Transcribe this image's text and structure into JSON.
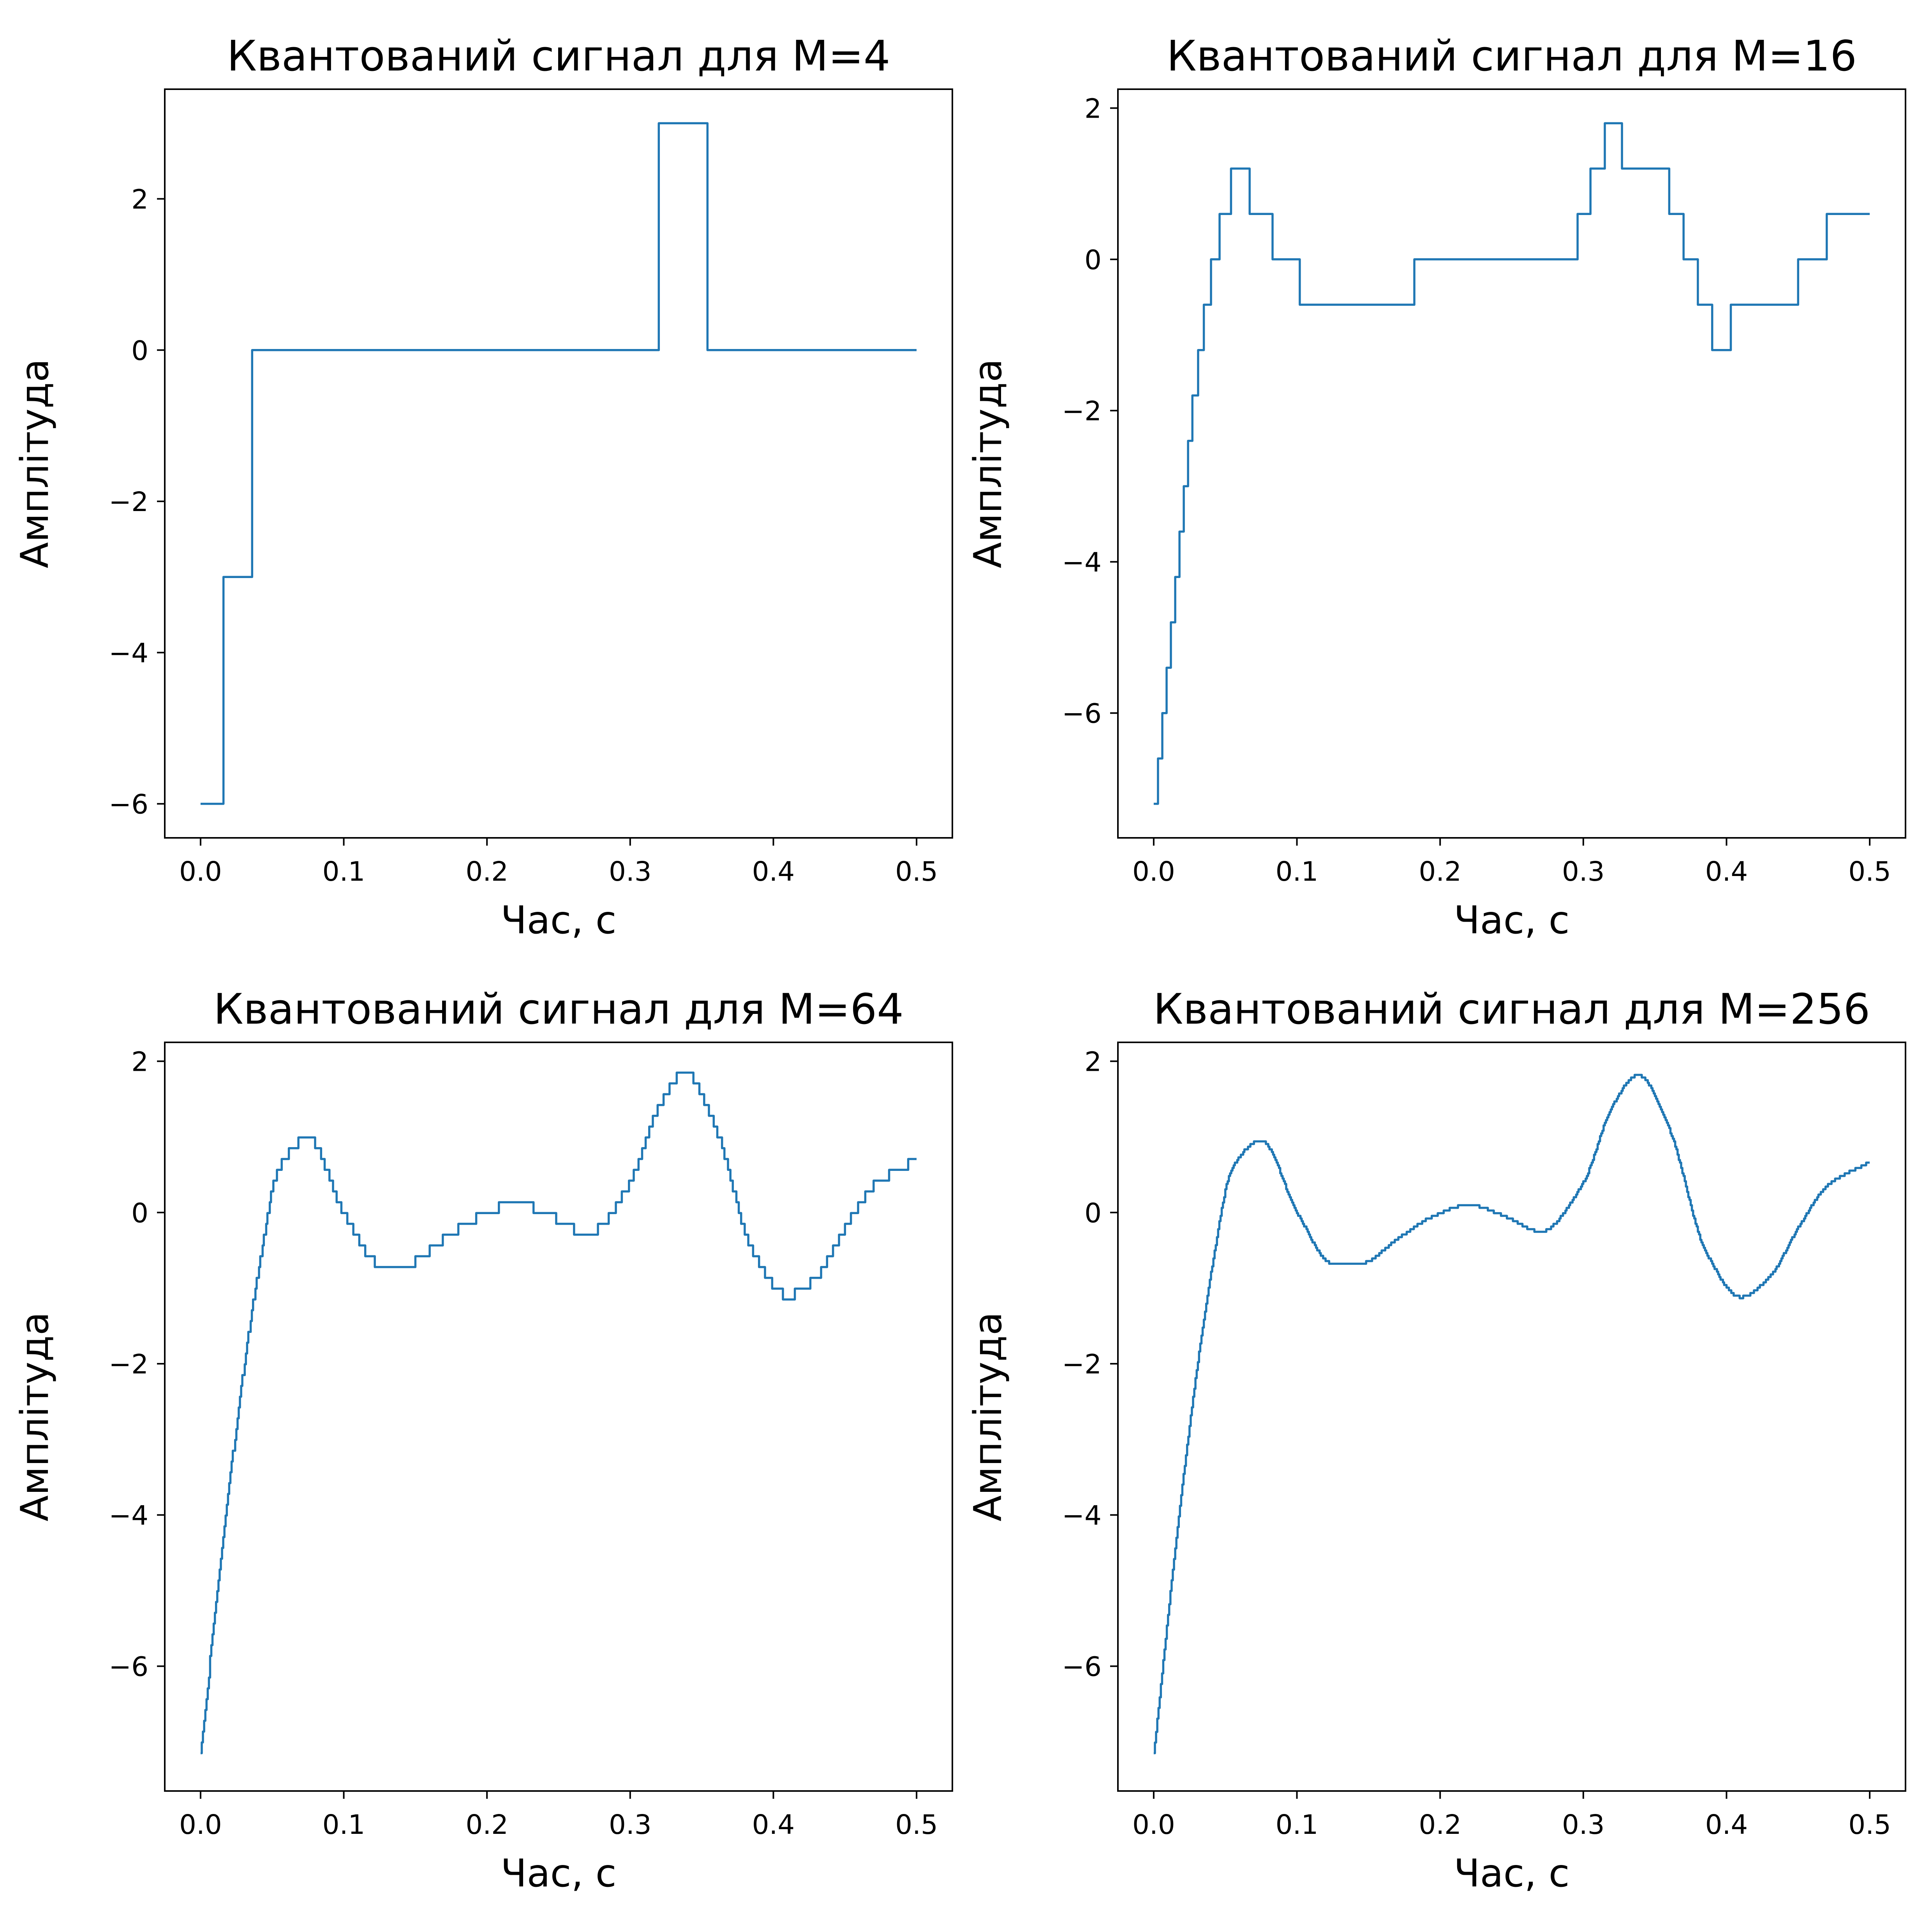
{
  "chart_data": [
    {
      "type": "line",
      "title": "Квантований сигнал для M=4",
      "xlabel": "Час, с",
      "ylabel": "Амплітуда",
      "xlim": [
        -0.025,
        0.525
      ],
      "ylim": [
        -6.45,
        3.45
      ],
      "xticks": [
        0.0,
        0.1,
        0.2,
        0.3,
        0.4,
        0.5
      ],
      "xtick_labels": [
        "0.0",
        "0.1",
        "0.2",
        "0.3",
        "0.4",
        "0.5"
      ],
      "yticks": [
        -6,
        -4,
        -2,
        0,
        2
      ],
      "ytick_labels": [
        "−6",
        "−4",
        "−2",
        "0",
        "2"
      ],
      "grid": false,
      "color": "#1f77b4",
      "series": [
        {
          "step": true,
          "x": [
            0,
            0.016,
            0.036,
            0.32,
            0.354,
            0.5
          ],
          "y": [
            -6,
            -3,
            0,
            3,
            0,
            0
          ]
        }
      ]
    },
    {
      "type": "line",
      "title": "Квантований сигнал для M=16",
      "xlabel": "Час, с",
      "ylabel": "Амплітуда",
      "xlim": [
        -0.025,
        0.525
      ],
      "ylim": [
        -7.65,
        2.25
      ],
      "xticks": [
        0.0,
        0.1,
        0.2,
        0.3,
        0.4,
        0.5
      ],
      "xtick_labels": [
        "0.0",
        "0.1",
        "0.2",
        "0.3",
        "0.4",
        "0.5"
      ],
      "yticks": [
        -6,
        -4,
        -2,
        0,
        2
      ],
      "ytick_labels": [
        "−6",
        "−4",
        "−2",
        "0",
        "2"
      ],
      "grid": false,
      "color": "#1f77b4",
      "series": [
        {
          "step": true,
          "x": [
            0,
            0.003,
            0.006,
            0.009,
            0.012,
            0.015,
            0.018,
            0.021,
            0.024,
            0.027,
            0.031,
            0.035,
            0.04,
            0.046,
            0.054,
            0.067,
            0.083,
            0.102,
            0.118,
            0.182,
            0.296,
            0.305,
            0.315,
            0.327,
            0.36,
            0.37,
            0.38,
            0.39,
            0.403,
            0.429,
            0.45,
            0.47,
            0.5
          ],
          "y": [
            -7.2,
            -6.6,
            -6.0,
            -5.4,
            -4.8,
            -4.2,
            -3.6,
            -3.0,
            -2.4,
            -1.8,
            -1.2,
            -0.6,
            0.0,
            0.6,
            1.2,
            0.6,
            0.0,
            -0.6,
            -0.6,
            0.0,
            0.6,
            1.2,
            1.8,
            1.2,
            0.6,
            0.0,
            -0.6,
            -1.2,
            -0.6,
            -0.6,
            0.0,
            0.6,
            0.6
          ]
        }
      ]
    },
    {
      "type": "line",
      "title": "Квантований сигнал для M=64",
      "xlabel": "Час, с",
      "ylabel": "Амплітуда",
      "xlim": [
        -0.025,
        0.525
      ],
      "ylim": [
        -7.65,
        2.25
      ],
      "xticks": [
        0.0,
        0.1,
        0.2,
        0.3,
        0.4,
        0.5
      ],
      "xtick_labels": [
        "0.0",
        "0.1",
        "0.2",
        "0.3",
        "0.4",
        "0.5"
      ],
      "yticks": [
        -6,
        -4,
        -2,
        0,
        2
      ],
      "ytick_labels": [
        "−6",
        "−4",
        "−2",
        "0",
        "2"
      ],
      "grid": false,
      "color": "#1f77b4",
      "quantization_levels": 64,
      "series": [
        {
          "step": true,
          "x": [
            0,
            0.02,
            0.04,
            0.055,
            0.075,
            0.1,
            0.125,
            0.145,
            0.17,
            0.195,
            0.22,
            0.245,
            0.27,
            0.3,
            0.32,
            0.338,
            0.36,
            0.385,
            0.41,
            0.43,
            0.45,
            0.47,
            0.5
          ],
          "y": [
            -7.15,
            -3.6,
            -0.8,
            0.6,
            0.98,
            0.0,
            -0.68,
            -0.67,
            -0.35,
            -0.05,
            0.12,
            -0.05,
            -0.28,
            0.4,
            1.4,
            1.85,
            1.1,
            -0.5,
            -1.1,
            -0.85,
            -0.2,
            0.35,
            0.7
          ]
        }
      ]
    },
    {
      "type": "line",
      "title": "Квантований сигнал для M=256",
      "xlabel": "Час, с",
      "ylabel": "Амплітуда",
      "xlim": [
        -0.025,
        0.525
      ],
      "ylim": [
        -7.65,
        2.25
      ],
      "xticks": [
        0.0,
        0.1,
        0.2,
        0.3,
        0.4,
        0.5
      ],
      "xtick_labels": [
        "0.0",
        "0.1",
        "0.2",
        "0.3",
        "0.4",
        "0.5"
      ],
      "yticks": [
        -6,
        -4,
        -2,
        0,
        2
      ],
      "ytick_labels": [
        "−6",
        "−4",
        "−2",
        "0",
        "2"
      ],
      "grid": false,
      "color": "#1f77b4",
      "quantization_levels": 256,
      "series": [
        {
          "step": true,
          "x": [
            0,
            0.02,
            0.04,
            0.055,
            0.075,
            0.1,
            0.125,
            0.145,
            0.17,
            0.195,
            0.22,
            0.245,
            0.27,
            0.3,
            0.32,
            0.338,
            0.36,
            0.385,
            0.41,
            0.43,
            0.45,
            0.47,
            0.5
          ],
          "y": [
            -7.15,
            -3.6,
            -0.8,
            0.6,
            0.95,
            0.0,
            -0.68,
            -0.67,
            -0.35,
            -0.05,
            0.1,
            -0.05,
            -0.25,
            0.4,
            1.4,
            1.82,
            1.1,
            -0.5,
            -1.12,
            -0.85,
            -0.2,
            0.35,
            0.67
          ]
        }
      ]
    }
  ]
}
